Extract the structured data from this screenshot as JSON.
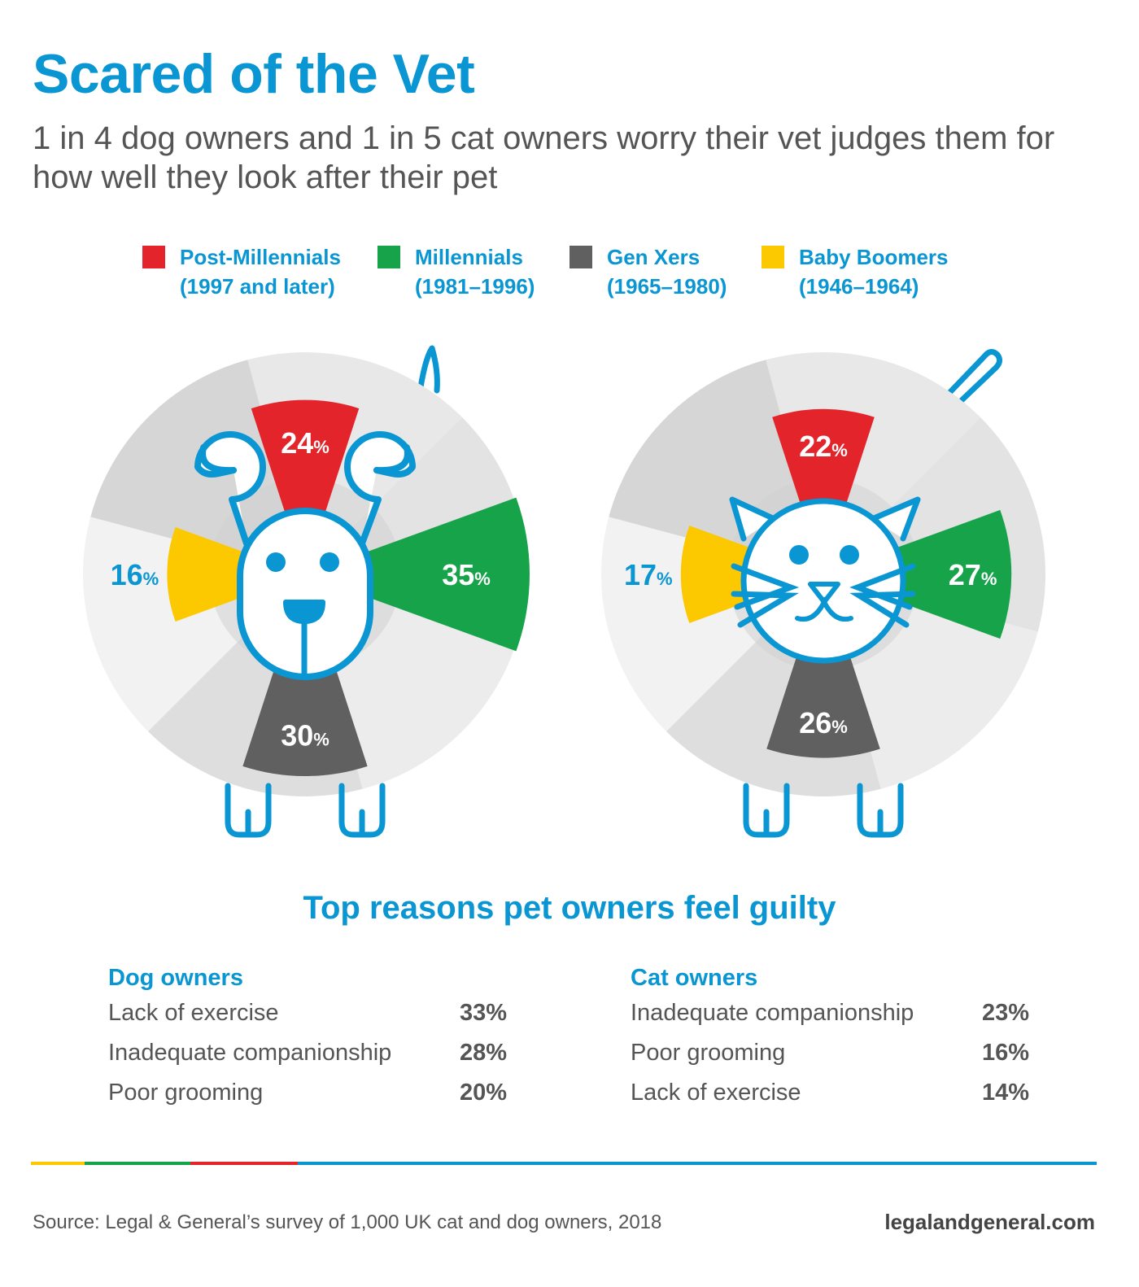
{
  "header": {
    "title": "Scared of the Vet",
    "subtitle": "1 in 4 dog owners and 1 in 5 cat owners worry their vet judges them for how well they look after their pet"
  },
  "legend": [
    {
      "name": "Post-Millennials",
      "range": "(1997 and later)",
      "color": "#e3242b"
    },
    {
      "name": "Millennials",
      "range": "(1981–1996)",
      "color": "#16a34a"
    },
    {
      "name": "Gen Xers",
      "range": "(1965–1980)",
      "color": "#606060"
    },
    {
      "name": "Baby Boomers",
      "range": "(1946–1964)",
      "color": "#fcc800"
    }
  ],
  "chart_data": [
    {
      "type": "pie",
      "pet": "dog",
      "categories": [
        "Post-Millennials",
        "Millennials",
        "Gen Xers",
        "Baby Boomers"
      ],
      "values": [
        24,
        35,
        30,
        16
      ],
      "unit": "%"
    },
    {
      "type": "pie",
      "pet": "cat",
      "categories": [
        "Post-Millennials",
        "Millennials",
        "Gen Xers",
        "Baby Boomers"
      ],
      "values": [
        22,
        27,
        26,
        17
      ],
      "unit": "%"
    }
  ],
  "reasons": {
    "title": "Top reasons pet owners feel guilty",
    "dog": {
      "heading": "Dog owners",
      "items": [
        {
          "label": "Lack of exercise",
          "value": "33%"
        },
        {
          "label": "Inadequate companionship",
          "value": "28%"
        },
        {
          "label": "Poor grooming",
          "value": "20%"
        }
      ]
    },
    "cat": {
      "heading": "Cat owners",
      "items": [
        {
          "label": "Inadequate companionship",
          "value": "23%"
        },
        {
          "label": "Poor grooming",
          "value": "16%"
        },
        {
          "label": "Lack of exercise",
          "value": "14%"
        }
      ]
    }
  },
  "footer": {
    "source": "Source: Legal & General’s survey of 1,000 UK cat and dog owners, 2018",
    "site": "legalandgeneral.com",
    "rule_colors": [
      "#fcc800",
      "#16a34a",
      "#e3242b",
      "#0a96d2"
    ]
  },
  "theme": {
    "accent": "#0a96d2",
    "text": "#555555",
    "pie_backgrounds": [
      "#e8e8e8",
      "#e3e3e3",
      "#ececec",
      "#dedede",
      "#f2f2f2",
      "#d6d6d6"
    ]
  }
}
